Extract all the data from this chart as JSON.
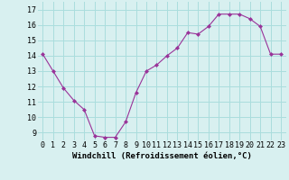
{
  "x": [
    0,
    1,
    2,
    3,
    4,
    5,
    6,
    7,
    8,
    9,
    10,
    11,
    12,
    13,
    14,
    15,
    16,
    17,
    18,
    19,
    20,
    21,
    22,
    23
  ],
  "y": [
    14.1,
    13.0,
    11.9,
    11.1,
    10.5,
    8.8,
    8.7,
    8.7,
    9.7,
    11.6,
    13.0,
    13.4,
    14.0,
    14.5,
    15.5,
    15.4,
    15.9,
    16.7,
    16.7,
    16.7,
    16.4,
    15.9,
    14.1,
    14.1
  ],
  "line_color": "#993399",
  "marker": "D",
  "marker_size": 2.0,
  "bg_color": "#d8f0f0",
  "grid_color": "#aadddd",
  "xlabel": "Windchill (Refroidissement éolien,°C)",
  "xlabel_fontsize": 6.5,
  "xtick_labels": [
    "0",
    "1",
    "2",
    "3",
    "4",
    "5",
    "6",
    "7",
    "8",
    "9",
    "10",
    "11",
    "12",
    "13",
    "14",
    "15",
    "16",
    "17",
    "18",
    "19",
    "20",
    "21",
    "22",
    "23"
  ],
  "ytick_labels": [
    "9",
    "10",
    "11",
    "12",
    "13",
    "14",
    "15",
    "16",
    "17"
  ],
  "ylim": [
    8.5,
    17.5
  ],
  "xlim": [
    -0.5,
    23.5
  ],
  "tick_fontsize": 6.0
}
